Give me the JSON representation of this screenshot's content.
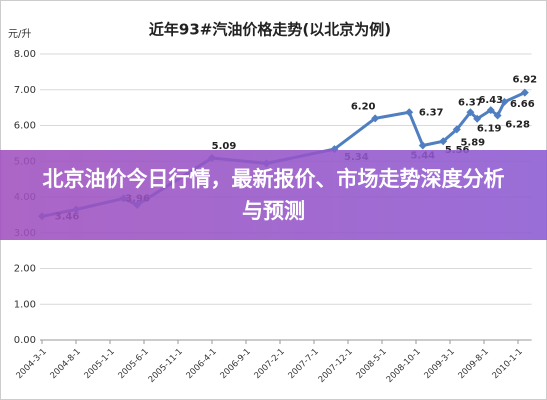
{
  "chart_data": {
    "type": "line",
    "title": "近年93#汽油价格走势(以北京为例)",
    "y_unit": "元/升",
    "x": [
      "2004-3-1",
      "2004-8-1",
      "2005-3-1",
      "2005-5-1",
      "2006-4-1",
      "2006-12-1",
      "2007-10-1",
      "2008-4-1",
      "2008-9-1",
      "2008-11-1",
      "2009-2-1",
      "2009-4-1",
      "2009-6-1",
      "2009-7-1",
      "2009-9-1",
      "2009-10-1",
      "2009-11-1",
      "2010-2-1"
    ],
    "values": [
      3.46,
      3.65,
      3.96,
      3.78,
      5.09,
      4.94,
      5.34,
      6.2,
      6.37,
      5.44,
      5.56,
      5.89,
      6.37,
      6.19,
      6.43,
      6.28,
      6.66,
      6.92
    ],
    "value_labels": [
      "3.46",
      null,
      "3.96",
      null,
      "5.09",
      null,
      "5.34",
      "6.20",
      "6.37",
      "5.44",
      "5.56",
      "5.89",
      "6.37",
      "6.19",
      "6.43",
      "6.28",
      "6.66",
      "6.92"
    ],
    "color": "#4f7fc0",
    "xlim": [
      "2004-3-1",
      "2010-3-1"
    ],
    "xticks": [
      "2004-3-1",
      "2004-8-1",
      "2005-1-1",
      "2005-6-1",
      "2005-11-1",
      "2006-4-1",
      "2006-9-1",
      "2007-2-1",
      "2007-7-1",
      "2007-12-1",
      "2008-5-1",
      "2008-10-1",
      "2009-3-1",
      "2009-8-1",
      "2010-1-1"
    ],
    "ylim": [
      0,
      8
    ],
    "yticks": [
      {
        "value": 0,
        "label": "0.00"
      },
      {
        "value": 1,
        "label": "1.00"
      },
      {
        "value": 2,
        "label": "2.00"
      },
      {
        "value": 3,
        "label": "3.00"
      },
      {
        "value": 4,
        "label": "4.00"
      },
      {
        "value": 5,
        "label": "5.00"
      },
      {
        "value": 6,
        "label": "6.00"
      },
      {
        "value": 7,
        "label": "7.00"
      },
      {
        "value": 8,
        "label": "8.00"
      }
    ],
    "grid": true
  },
  "banner": {
    "text": "北京油价今日行情，最新报价、市场走势深度分析与预测"
  }
}
